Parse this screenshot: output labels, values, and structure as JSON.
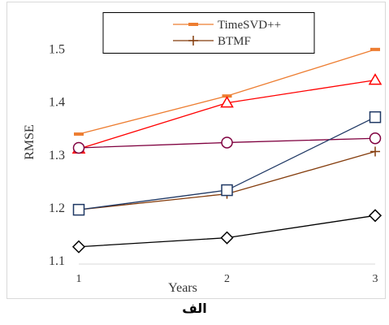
{
  "caption": "الف",
  "chart_data": {
    "type": "line",
    "xlabel": "Years",
    "ylabel": "RMSE",
    "x": [
      1,
      2,
      3
    ],
    "x_ticks": [
      "1",
      "2",
      "3"
    ],
    "ylim": [
      1.1,
      1.55
    ],
    "y_ticks": [
      "1.1",
      "1.2",
      "1.3",
      "1.4",
      "1.5"
    ],
    "grid": false,
    "legend_placement": "top-right",
    "series": [
      {
        "name": "TimeSVD++",
        "values": [
          1.338,
          1.41,
          1.498
        ],
        "color": "#ed7d31",
        "marker": "dash"
      },
      {
        "name": "BTMF",
        "values": [
          1.195,
          1.225,
          1.305
        ],
        "color": "#843c0c",
        "marker": "plus"
      },
      {
        "name": "",
        "values": [
          1.31,
          1.397,
          1.44
        ],
        "color": "#ff0000",
        "marker": "triangle"
      },
      {
        "name": "",
        "values": [
          1.312,
          1.322,
          1.33
        ],
        "color": "#7f003f",
        "marker": "circle"
      },
      {
        "name": "",
        "values": [
          1.195,
          1.232,
          1.37
        ],
        "color": "#1f3864",
        "marker": "square"
      },
      {
        "name": "",
        "values": [
          1.125,
          1.142,
          1.184
        ],
        "color": "#000000",
        "marker": "diamond"
      }
    ]
  }
}
